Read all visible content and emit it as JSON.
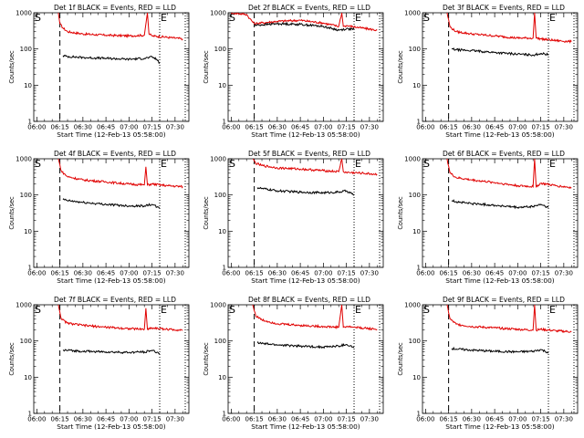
{
  "figure": {
    "x_ticklabels": [
      "06:00",
      "06:15",
      "06:30",
      "06:45",
      "07:00",
      "07:15",
      "07:30"
    ],
    "y_ticklabels": [
      "1",
      "10",
      "100",
      "1000"
    ],
    "xlabel": "Start Time (12-Feb-13 05:58:00)",
    "ylabel": "Counts/sec",
    "marker_s": "S",
    "marker_e": "E",
    "colors": {
      "events": "#000000",
      "lld": "#e00000",
      "axes": "#000000"
    }
  },
  "chart_data": [
    {
      "type": "line",
      "title": "Det 1f BLACK = Events, RED = LLD",
      "xlabel": "Start Time (12-Feb-13 05:58:00)",
      "ylabel": "Counts/sec",
      "x_range": [
        "05:58",
        "07:39"
      ],
      "ylim": [
        1,
        1000
      ],
      "y_scale": "log",
      "start_marker": "06:15",
      "end_marker": "07:20",
      "series": [
        {
          "name": "",
          "color": "red",
          "x": [
            "06:14",
            "06:15",
            "06:17",
            "06:20",
            "06:30",
            "06:45",
            "07:00",
            "07:10",
            "07:12",
            "07:13",
            "07:15",
            "07:25",
            "07:35"
          ],
          "values": [
            1000,
            500,
            380,
            300,
            260,
            240,
            230,
            240,
            1000,
            260,
            230,
            210,
            190
          ]
        },
        {
          "name": "",
          "color": "black",
          "x": [
            "06:17",
            "06:20",
            "06:30",
            "06:45",
            "07:00",
            "07:10",
            "07:15",
            "07:18",
            "07:20"
          ],
          "values": [
            65,
            62,
            58,
            55,
            52,
            55,
            60,
            52,
            40
          ]
        }
      ]
    },
    {
      "type": "line",
      "title": "Det 2f BLACK = Events, RED = LLD",
      "xlabel": "Start Time (12-Feb-13 05:58:00)",
      "ylabel": "Counts/sec",
      "x_range": [
        "05:58",
        "07:39"
      ],
      "ylim": [
        1,
        1000
      ],
      "y_scale": "log",
      "start_marker": "06:15",
      "end_marker": "07:20",
      "series": [
        {
          "name": "",
          "color": "red",
          "x": [
            "06:00",
            "06:10",
            "06:12",
            "06:15",
            "06:30",
            "06:45",
            "07:00",
            "07:10",
            "07:12",
            "07:13",
            "07:15",
            "07:25",
            "07:35"
          ],
          "values": [
            1000,
            900,
            700,
            500,
            580,
            620,
            520,
            420,
            1000,
            420,
            440,
            380,
            330
          ]
        },
        {
          "name": "",
          "color": "black",
          "x": [
            "06:15",
            "06:30",
            "06:45",
            "07:00",
            "07:10",
            "07:15",
            "07:20"
          ],
          "values": [
            450,
            500,
            480,
            420,
            330,
            360,
            350
          ]
        }
      ]
    },
    {
      "type": "line",
      "title": "Det 3f BLACK = Events, RED = LLD",
      "xlabel": "Start Time (12-Feb-13 05:58:00)",
      "ylabel": "Counts/sec",
      "x_range": [
        "05:58",
        "07:39"
      ],
      "ylim": [
        1,
        1000
      ],
      "y_scale": "log",
      "start_marker": "06:15",
      "end_marker": "07:20",
      "series": [
        {
          "name": "",
          "color": "red",
          "x": [
            "06:14",
            "06:16",
            "06:20",
            "06:30",
            "06:45",
            "07:00",
            "07:10",
            "07:11",
            "07:12",
            "07:15",
            "07:25",
            "07:35"
          ],
          "values": [
            1000,
            400,
            300,
            260,
            230,
            200,
            200,
            1000,
            200,
            190,
            170,
            160
          ]
        },
        {
          "name": "",
          "color": "black",
          "x": [
            "06:17",
            "06:20",
            "06:30",
            "06:45",
            "07:00",
            "07:10",
            "07:15",
            "07:20"
          ],
          "values": [
            100,
            95,
            90,
            80,
            72,
            68,
            75,
            70
          ]
        }
      ]
    },
    {
      "type": "line",
      "title": "Det 4f BLACK = Events, RED = LLD",
      "xlabel": "Start Time (12-Feb-13 05:58:00)",
      "ylabel": "Counts/sec",
      "x_range": [
        "05:58",
        "07:39"
      ],
      "ylim": [
        1,
        1000
      ],
      "y_scale": "log",
      "start_marker": "06:15",
      "end_marker": "07:20",
      "series": [
        {
          "name": "",
          "color": "red",
          "x": [
            "06:14",
            "06:16",
            "06:20",
            "06:30",
            "06:45",
            "07:00",
            "07:10",
            "07:11",
            "07:12",
            "07:15",
            "07:25",
            "07:35"
          ],
          "values": [
            1000,
            450,
            320,
            260,
            230,
            200,
            190,
            600,
            190,
            200,
            180,
            170
          ]
        },
        {
          "name": "",
          "color": "black",
          "x": [
            "06:17",
            "06:20",
            "06:30",
            "06:45",
            "07:00",
            "07:10",
            "07:15",
            "07:20"
          ],
          "values": [
            75,
            70,
            62,
            55,
            50,
            50,
            55,
            42
          ]
        }
      ]
    },
    {
      "type": "line",
      "title": "Det 5f BLACK = Events, RED = LLD",
      "xlabel": "Start Time (12-Feb-13 05:58:00)",
      "ylabel": "Counts/sec",
      "x_range": [
        "05:58",
        "07:39"
      ],
      "ylim": [
        1,
        1000
      ],
      "y_scale": "log",
      "start_marker": "06:15",
      "end_marker": "07:20",
      "series": [
        {
          "name": "",
          "color": "red",
          "x": [
            "06:14",
            "06:16",
            "06:20",
            "06:30",
            "06:45",
            "07:00",
            "07:10",
            "07:12",
            "07:13",
            "07:15",
            "07:25",
            "07:35"
          ],
          "values": [
            1000,
            750,
            650,
            560,
            520,
            470,
            440,
            1000,
            440,
            420,
            400,
            370
          ]
        },
        {
          "name": "",
          "color": "black",
          "x": [
            "06:17",
            "06:20",
            "06:30",
            "06:45",
            "07:00",
            "07:10",
            "07:15",
            "07:20"
          ],
          "values": [
            160,
            150,
            130,
            120,
            115,
            120,
            130,
            100
          ]
        }
      ]
    },
    {
      "type": "line",
      "title": "Det 6f BLACK = Events, RED = LLD",
      "xlabel": "Start Time (12-Feb-13 05:58:00)",
      "ylabel": "Counts/sec",
      "x_range": [
        "05:58",
        "07:39"
      ],
      "ylim": [
        1,
        1000
      ],
      "y_scale": "log",
      "start_marker": "06:15",
      "end_marker": "07:20",
      "series": [
        {
          "name": "",
          "color": "red",
          "x": [
            "06:14",
            "06:16",
            "06:20",
            "06:30",
            "06:45",
            "07:00",
            "07:10",
            "07:11",
            "07:12",
            "07:15",
            "07:25",
            "07:35"
          ],
          "values": [
            1000,
            400,
            300,
            260,
            220,
            180,
            170,
            1000,
            170,
            210,
            180,
            160
          ]
        },
        {
          "name": "",
          "color": "black",
          "x": [
            "06:17",
            "06:20",
            "06:30",
            "06:45",
            "07:00",
            "07:10",
            "07:15",
            "07:20"
          ],
          "values": [
            70,
            65,
            58,
            52,
            45,
            48,
            55,
            45
          ]
        }
      ]
    },
    {
      "type": "line",
      "title": "Det 7f BLACK = Events, RED = LLD",
      "xlabel": "Start Time (12-Feb-13 05:58:00)",
      "ylabel": "Counts/sec",
      "x_range": [
        "05:58",
        "07:39"
      ],
      "ylim": [
        1,
        1000
      ],
      "y_scale": "log",
      "start_marker": "06:15",
      "end_marker": "07:20",
      "series": [
        {
          "name": "",
          "color": "red",
          "x": [
            "06:14",
            "06:16",
            "06:20",
            "06:30",
            "06:45",
            "07:00",
            "07:10",
            "07:11",
            "07:12",
            "07:15",
            "07:25",
            "07:35"
          ],
          "values": [
            1000,
            400,
            310,
            270,
            240,
            220,
            210,
            800,
            210,
            230,
            210,
            200
          ]
        },
        {
          "name": "",
          "color": "black",
          "x": [
            "06:17",
            "06:20",
            "06:30",
            "06:45",
            "07:00",
            "07:10",
            "07:15",
            "07:20"
          ],
          "values": [
            55,
            55,
            52,
            50,
            48,
            50,
            55,
            45
          ]
        }
      ]
    },
    {
      "type": "line",
      "title": "Det 8f BLACK = Events, RED = LLD",
      "xlabel": "Start Time (12-Feb-13 05:58:00)",
      "ylabel": "Counts/sec",
      "x_range": [
        "05:58",
        "07:39"
      ],
      "ylim": [
        1,
        1000
      ],
      "y_scale": "log",
      "start_marker": "06:15",
      "end_marker": "07:20",
      "series": [
        {
          "name": "",
          "color": "red",
          "x": [
            "06:14",
            "06:16",
            "06:20",
            "06:30",
            "06:45",
            "07:00",
            "07:10",
            "07:12",
            "07:13",
            "07:15",
            "07:25",
            "07:35"
          ],
          "values": [
            1000,
            500,
            380,
            300,
            270,
            250,
            240,
            1000,
            240,
            250,
            230,
            210
          ]
        },
        {
          "name": "",
          "color": "black",
          "x": [
            "06:17",
            "06:20",
            "06:30",
            "06:45",
            "07:00",
            "07:10",
            "07:15",
            "07:20"
          ],
          "values": [
            90,
            85,
            78,
            72,
            68,
            72,
            80,
            65
          ]
        }
      ]
    },
    {
      "type": "line",
      "title": "Det 9f BLACK = Events, RED = LLD",
      "xlabel": "Start Time (12-Feb-13 05:58:00)",
      "ylabel": "Counts/sec",
      "x_range": [
        "05:58",
        "07:39"
      ],
      "ylim": [
        1,
        1000
      ],
      "y_scale": "log",
      "start_marker": "06:15",
      "end_marker": "07:20",
      "series": [
        {
          "name": "",
          "color": "red",
          "x": [
            "06:14",
            "06:16",
            "06:20",
            "06:30",
            "06:45",
            "07:00",
            "07:10",
            "07:11",
            "07:12",
            "07:15",
            "07:25",
            "07:35"
          ],
          "values": [
            1000,
            400,
            290,
            250,
            230,
            210,
            200,
            1000,
            200,
            210,
            190,
            180
          ]
        },
        {
          "name": "",
          "color": "black",
          "x": [
            "06:17",
            "06:20",
            "06:30",
            "06:45",
            "07:00",
            "07:10",
            "07:15",
            "07:20"
          ],
          "values": [
            62,
            60,
            56,
            52,
            50,
            52,
            58,
            48
          ]
        }
      ]
    }
  ]
}
